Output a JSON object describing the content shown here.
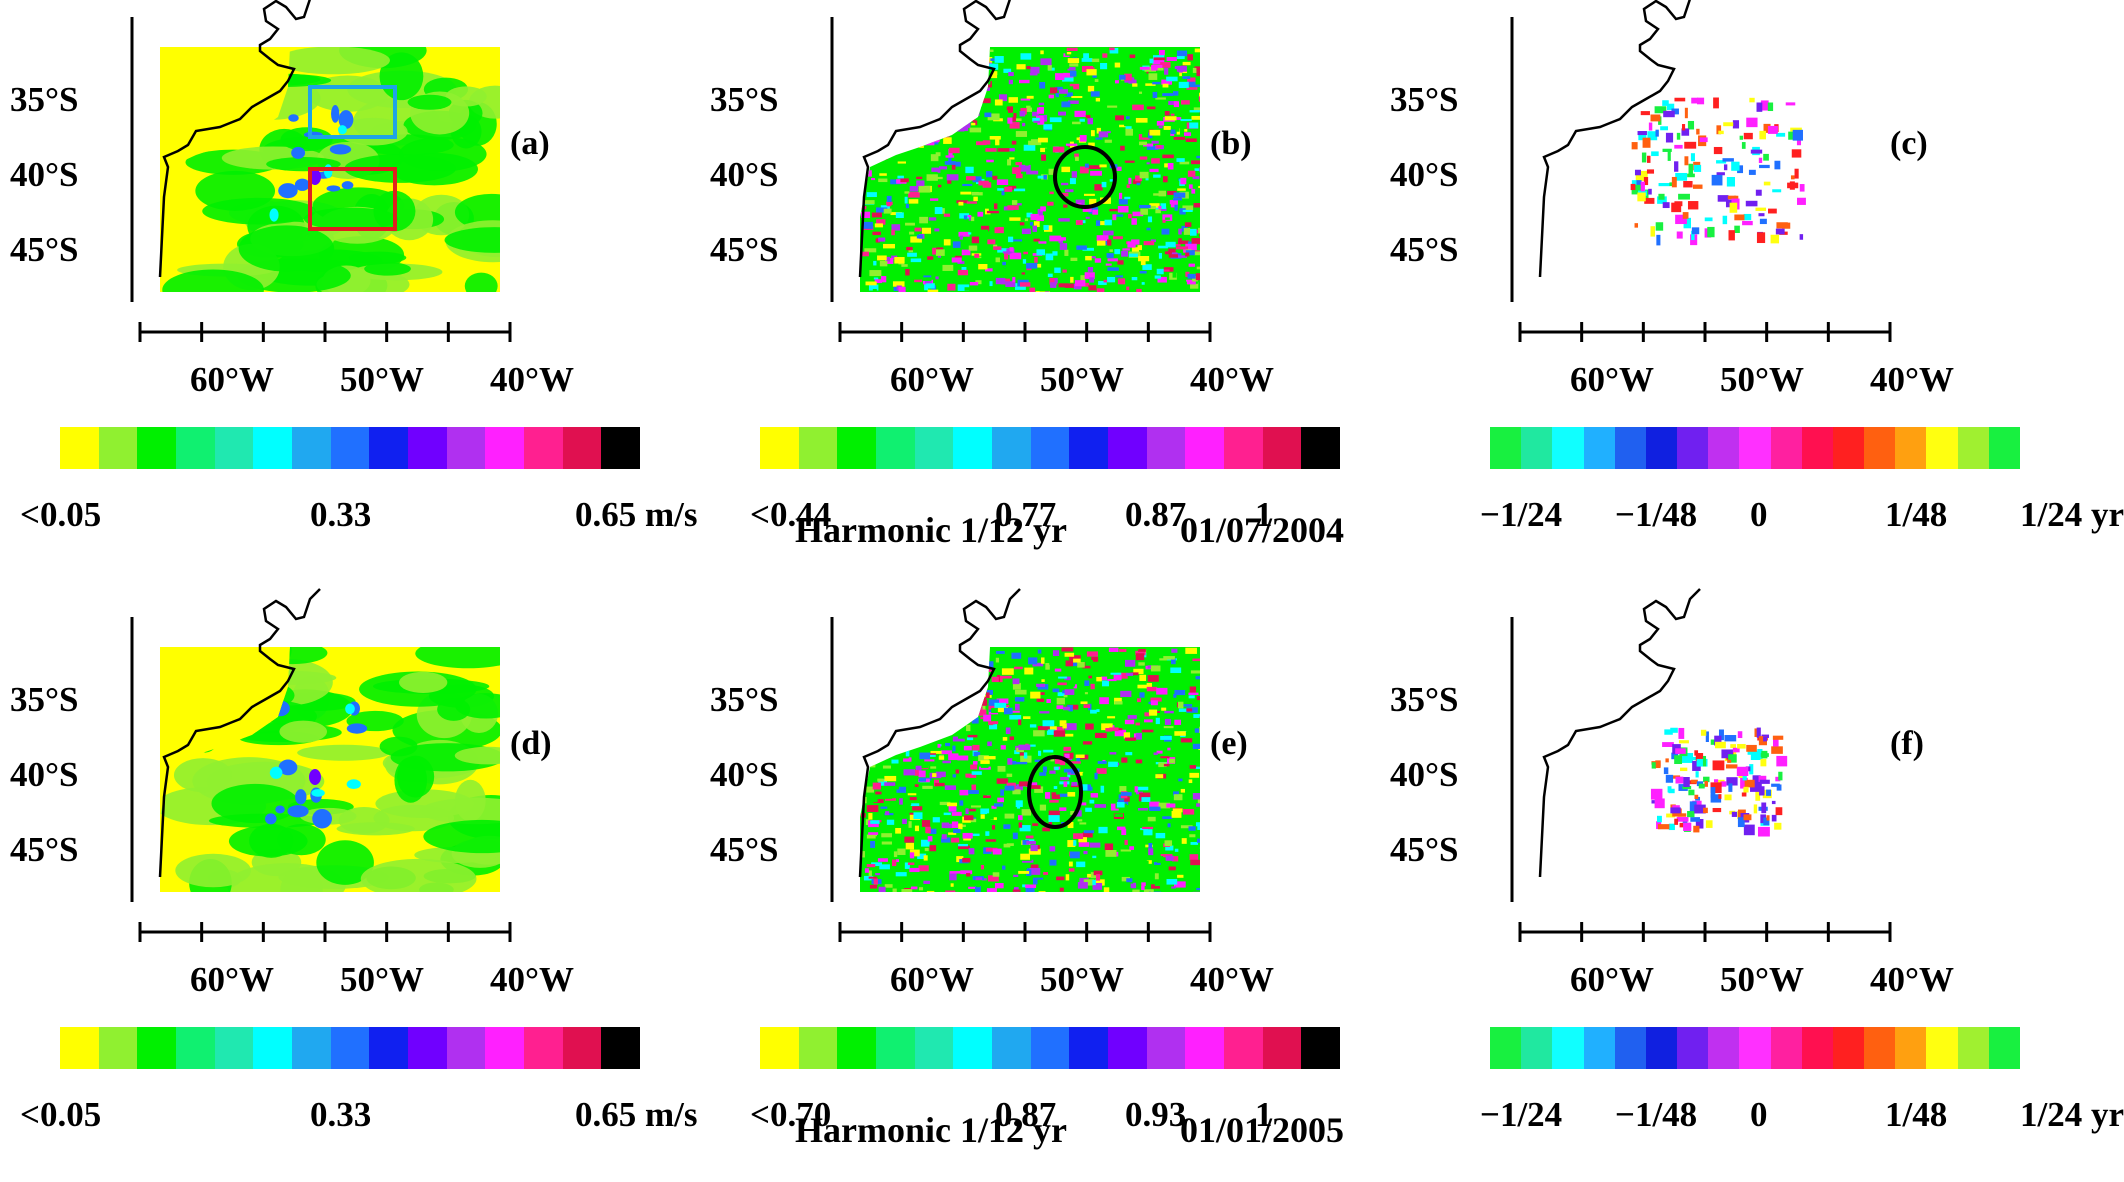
{
  "figure": {
    "rows": [
      {
        "caption": "Harmonic 1/12 yr",
        "date": "01/07/2004",
        "panels": [
          {
            "id": "a",
            "label": "(a)",
            "kind": "velocity",
            "colorbar": {
              "min_label": "<0.05",
              "mid_label": "0.33",
              "max_label": "0.65 m/s",
              "palette": "velocity"
            },
            "boxes": [
              {
                "color": "#1fa3e6",
                "name": "blue-box"
              },
              {
                "color": "#e02020",
                "name": "red-box"
              }
            ]
          },
          {
            "id": "b",
            "label": "(b)",
            "kind": "noise",
            "colorbar": {
              "labels": [
                "<0.44",
                "0.77",
                "0.87",
                "1"
              ],
              "palette": "velocity"
            },
            "circle": {
              "present": true
            }
          },
          {
            "id": "c",
            "label": "(c)",
            "kind": "sparse",
            "colorbar": {
              "labels": [
                "−1/24",
                "−1/48",
                "0",
                "1/48",
                "1/24 yr"
              ],
              "palette": "phase"
            }
          }
        ]
      },
      {
        "caption": "Harmonic 1/12 yr",
        "date": "01/01/2005",
        "panels": [
          {
            "id": "d",
            "label": "(d)",
            "kind": "velocity",
            "colorbar": {
              "min_label": "<0.05",
              "mid_label": "0.33",
              "max_label": "0.65 m/s",
              "palette": "velocity"
            }
          },
          {
            "id": "e",
            "label": "(e)",
            "kind": "noise",
            "colorbar": {
              "labels": [
                "<0.70",
                "0.87",
                "0.93",
                "1"
              ],
              "palette": "velocity"
            },
            "circle": {
              "present": true
            }
          },
          {
            "id": "f",
            "label": "(f)",
            "kind": "sparse",
            "colorbar": {
              "labels": [
                "−1/24",
                "−1/48",
                "0",
                "1/48",
                "1/24 yr"
              ],
              "palette": "phase"
            }
          }
        ]
      }
    ],
    "axes": {
      "lat_ticks": [
        "35°S",
        "40°S",
        "45°S"
      ],
      "lon_ticks": [
        "60°W",
        "50°W",
        "40°W"
      ]
    },
    "palettes": {
      "velocity": [
        "#ffff00",
        "#90f030",
        "#00f000",
        "#10f070",
        "#20e8b0",
        "#00ffff",
        "#20a8f0",
        "#2070ff",
        "#1020f0",
        "#7000ff",
        "#b030f0",
        "#ff20ff",
        "#ff2090",
        "#e01050",
        "#000000"
      ],
      "phase": [
        "#18f040",
        "#20e8a0",
        "#10ffff",
        "#20b0ff",
        "#2060f0",
        "#1020e0",
        "#7020f0",
        "#c030f0",
        "#ff30ff",
        "#ff20a0",
        "#ff1050",
        "#ff2020",
        "#ff6010",
        "#ffa010",
        "#ffff10",
        "#a0f030",
        "#18f040"
      ]
    }
  }
}
